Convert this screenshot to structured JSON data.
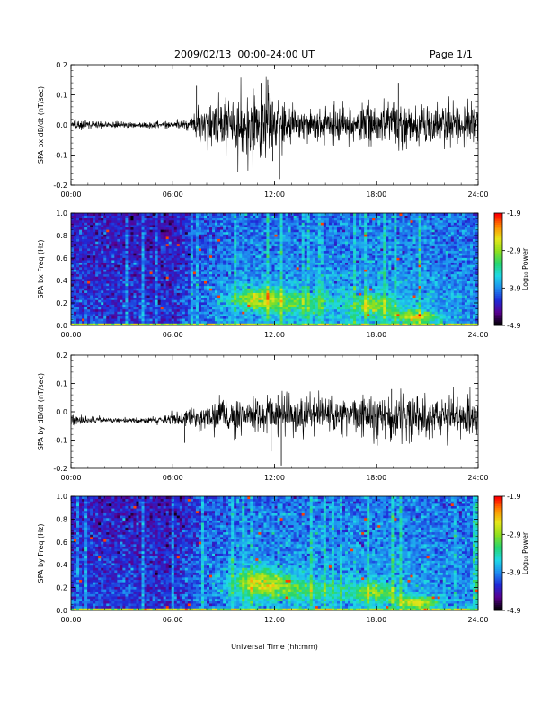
{
  "header": {
    "title": "2009/02/13  00:00-24:00 UT",
    "page": "Page 1/1"
  },
  "xaxis_label": "Universal Time (hh:mm)",
  "colors": {
    "colormap": [
      "#000000",
      "#5a0090",
      "#1f2ad8",
      "#1e8ef0",
      "#1fd9e6",
      "#26d66e",
      "#8fe01d",
      "#e6e619",
      "#ff8c00",
      "#ff0000"
    ],
    "trace": "#000000",
    "frame": "#000000"
  },
  "chart_data": [
    {
      "type": "line",
      "ylabel": "SPA bx dB/dt (nT/sec)",
      "xlim": [
        0,
        24
      ],
      "ylim": [
        -0.2,
        0.2
      ],
      "x_ticks": [
        "00:00",
        "06:00",
        "12:00",
        "18:00",
        "24:00"
      ],
      "y_ticks": [
        "-0.2",
        "-0.1",
        "0.0",
        "0.1",
        "0.2"
      ],
      "envelope": {
        "hours": [
          0,
          1,
          2,
          3,
          4,
          5,
          6,
          7,
          7.5,
          8,
          9,
          10,
          11,
          12,
          13,
          14,
          15,
          16,
          17,
          18,
          19,
          20,
          21,
          22,
          23,
          24
        ],
        "amp": [
          0.02,
          0.012,
          0.01,
          0.01,
          0.008,
          0.01,
          0.012,
          0.02,
          0.05,
          0.06,
          0.07,
          0.09,
          0.1,
          0.09,
          0.06,
          0.045,
          0.05,
          0.055,
          0.055,
          0.06,
          0.06,
          0.06,
          0.06,
          0.06,
          0.065,
          0.07
        ],
        "center": [
          0.0,
          0.0,
          0.0,
          0.0,
          0.0,
          0.0,
          0.0,
          0.0,
          0.0,
          0.0,
          0.0,
          0.0,
          0.0,
          0.0,
          0.0,
          0.0,
          0.0,
          0.0,
          0.0,
          0.0,
          0.0,
          0.0,
          0.0,
          0.0,
          0.0,
          0.0
        ]
      },
      "spikes": [
        [
          7.4,
          0.13
        ],
        [
          11.2,
          0.14
        ],
        [
          11.6,
          0.15
        ],
        [
          12.3,
          -0.18
        ],
        [
          11.9,
          -0.12
        ],
        [
          19.3,
          0.14
        ]
      ]
    },
    {
      "type": "heatmap",
      "ylabel": "SPA bx Freq (Hz)",
      "xlim": [
        0,
        24
      ],
      "ylim": [
        0.0,
        1.0
      ],
      "x_ticks": [
        "00:00",
        "06:00",
        "12:00",
        "18:00",
        "24:00"
      ],
      "y_ticks": [
        "0.0",
        "0.2",
        "0.4",
        "0.6",
        "0.8",
        "1.0"
      ],
      "colorbar": {
        "label": "Log₁₀ Power",
        "range": [
          -4.9,
          -1.9
        ],
        "ticks": [
          "-1.9",
          "-2.9",
          "-3.9",
          "-4.9"
        ]
      },
      "hotspots": [
        {
          "hour": 11.0,
          "freq": 0.24,
          "hour_width": 1.5,
          "freq_width": 0.1,
          "level": 0.65
        },
        {
          "hour": 13.5,
          "freq": 0.2,
          "hour_width": 2.0,
          "freq_width": 0.12,
          "level": 0.5
        },
        {
          "hour": 17.8,
          "freq": 0.18,
          "hour_width": 1.5,
          "freq_width": 0.1,
          "level": 0.6
        },
        {
          "hour": 20.3,
          "freq": 0.08,
          "hour_width": 1.2,
          "freq_width": 0.05,
          "level": 0.7
        }
      ]
    },
    {
      "type": "line",
      "ylabel": "SPA by dB/dt (nT/sec)",
      "xlim": [
        0,
        24
      ],
      "ylim": [
        -0.2,
        0.2
      ],
      "x_ticks": [
        "00:00",
        "06:00",
        "12:00",
        "18:00",
        "24:00"
      ],
      "y_ticks": [
        "-0.2",
        "-0.1",
        "0.0",
        "0.1",
        "0.2"
      ],
      "envelope": {
        "hours": [
          0,
          1,
          2,
          3,
          4,
          5,
          6,
          7,
          7.5,
          8,
          9,
          10,
          11,
          12,
          13,
          14,
          15,
          16,
          17,
          18,
          19,
          20,
          21,
          22,
          23,
          24
        ],
        "amp": [
          0.018,
          0.012,
          0.008,
          0.008,
          0.008,
          0.012,
          0.02,
          0.03,
          0.04,
          0.04,
          0.045,
          0.055,
          0.06,
          0.065,
          0.06,
          0.055,
          0.055,
          0.06,
          0.06,
          0.065,
          0.07,
          0.07,
          0.065,
          0.06,
          0.065,
          0.07
        ],
        "center": [
          -0.03,
          -0.03,
          -0.03,
          -0.03,
          -0.03,
          -0.03,
          -0.025,
          -0.02,
          -0.02,
          -0.02,
          -0.015,
          -0.015,
          -0.01,
          -0.01,
          -0.01,
          -0.01,
          -0.01,
          -0.01,
          -0.01,
          -0.01,
          -0.01,
          -0.01,
          -0.015,
          -0.015,
          -0.02,
          -0.02
        ]
      },
      "spikes": [
        [
          12.2,
          0.06
        ],
        [
          12.4,
          -0.19
        ],
        [
          11.8,
          -0.14
        ],
        [
          6.7,
          -0.11
        ],
        [
          20.1,
          0.09
        ],
        [
          18.9,
          0.08
        ]
      ]
    },
    {
      "type": "heatmap",
      "ylabel": "SPA by Freq (Hz)",
      "xlim": [
        0,
        24
      ],
      "ylim": [
        0.0,
        1.0
      ],
      "x_ticks": [
        "00:00",
        "06:00",
        "12:00",
        "18:00",
        "24:00"
      ],
      "y_ticks": [
        "0.0",
        "0.2",
        "0.4",
        "0.6",
        "0.8",
        "1.0"
      ],
      "colorbar": {
        "label": "Log₁₀ Power",
        "range": [
          -4.9,
          -1.9
        ],
        "ticks": [
          "-1.9",
          "-2.9",
          "-3.9",
          "-4.9"
        ]
      },
      "hotspots": [
        {
          "hour": 11.2,
          "freq": 0.25,
          "hour_width": 1.6,
          "freq_width": 0.12,
          "level": 0.68
        },
        {
          "hour": 13.8,
          "freq": 0.18,
          "hour_width": 2.2,
          "freq_width": 0.1,
          "level": 0.5
        },
        {
          "hour": 17.9,
          "freq": 0.16,
          "hour_width": 1.5,
          "freq_width": 0.09,
          "level": 0.58
        },
        {
          "hour": 20.4,
          "freq": 0.07,
          "hour_width": 1.2,
          "freq_width": 0.05,
          "level": 0.72
        }
      ]
    }
  ]
}
